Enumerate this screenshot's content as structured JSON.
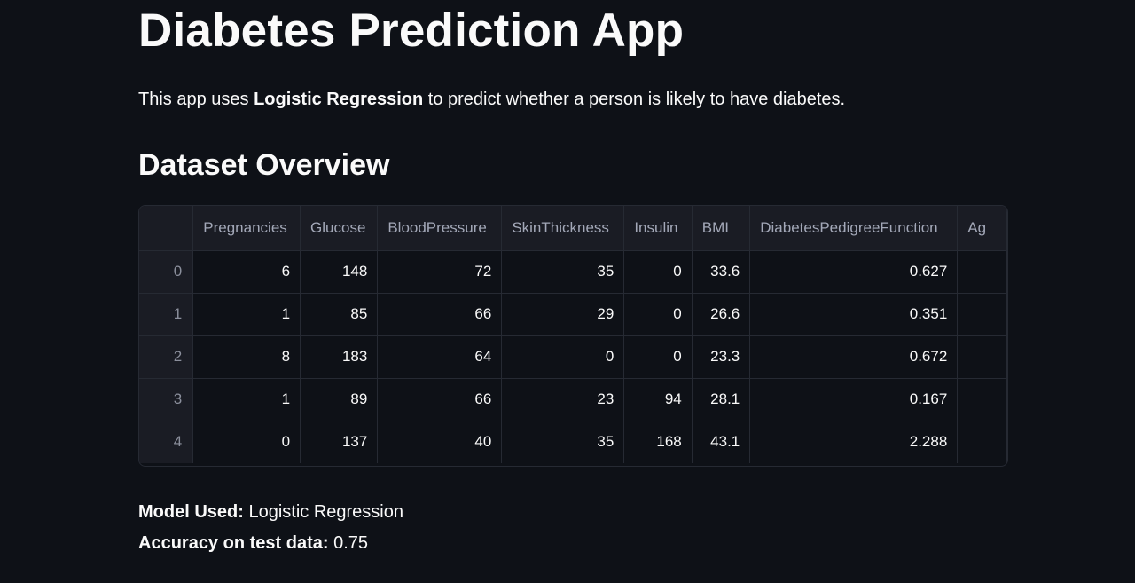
{
  "page": {
    "title": "Diabetes Prediction App",
    "intro": {
      "prefix": "This app uses ",
      "bold": "Logistic Regression",
      "suffix": " to predict whether a person is likely to have diabetes."
    },
    "section_title": "Dataset Overview"
  },
  "table": {
    "columns": [
      "",
      "Pregnancies",
      "Glucose",
      "BloodPressure",
      "SkinThickness",
      "Insulin",
      "BMI",
      "DiabetesPedigreeFunction",
      "Ag"
    ],
    "rows": [
      [
        "0",
        "6",
        "148",
        "72",
        "35",
        "0",
        "33.6",
        "0.627",
        ""
      ],
      [
        "1",
        "1",
        "85",
        "66",
        "29",
        "0",
        "26.6",
        "0.351",
        ""
      ],
      [
        "2",
        "8",
        "183",
        "64",
        "0",
        "0",
        "23.3",
        "0.672",
        ""
      ],
      [
        "3",
        "1",
        "89",
        "66",
        "23",
        "94",
        "28.1",
        "0.167",
        ""
      ],
      [
        "4",
        "0",
        "137",
        "40",
        "35",
        "168",
        "43.1",
        "2.288",
        ""
      ]
    ]
  },
  "summary": {
    "model_label": "Model Used:",
    "model_value": " Logistic Regression",
    "accuracy_label": "Accuracy on test data:",
    "accuracy_value": " 0.75"
  }
}
